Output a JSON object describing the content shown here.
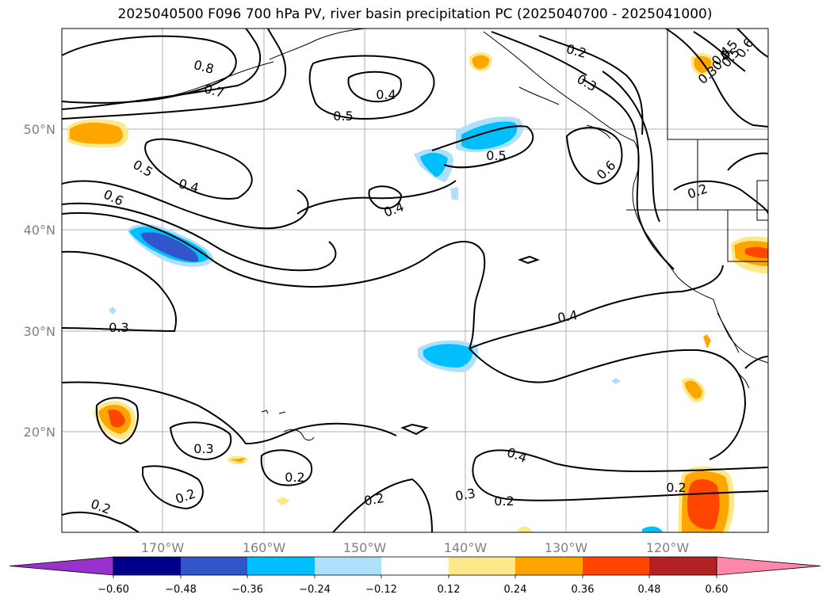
{
  "title": "2025040500 F096 700 hPa PV, river basin precipitation PC (2025040700 - 2025041000)",
  "lat_labels": [
    "50°N",
    "40°N",
    "30°N",
    "20°N"
  ],
  "lon_labels": [
    "170°W",
    "160°W",
    "150°W",
    "140°W",
    "130°W",
    "120°W"
  ],
  "contour_labels": [
    "0.8",
    "0.7",
    "0.5",
    "0.4",
    "0.5",
    "0.2",
    "0.3",
    "0.4",
    "0.5",
    "0.4",
    "0.6",
    "0.6",
    "0.5",
    "0.4",
    "0.3",
    "0.2",
    "0.3",
    "0.2",
    "0.2",
    "0.2",
    "0.3",
    "0.4",
    "0.2",
    "0.2",
    "0.4",
    "0.2",
    "0.6",
    "0.5",
    "0.4",
    "0.3"
  ],
  "colorbar": {
    "ticks": [
      "−0.60",
      "−0.48",
      "−0.36",
      "−0.24",
      "−0.12",
      "0.12",
      "0.24",
      "0.36",
      "0.48",
      "0.60"
    ],
    "colors": {
      "under": "#9932cc",
      "lt_neg060": "#00008b",
      "neg048": "#3355cc",
      "neg036": "#00bfff",
      "neg024": "#aee0fb",
      "zero": "#ffffff",
      "pos012": "#fde98a",
      "pos024": "#ffa500",
      "pos036": "#ff4500",
      "pos048": "#b22222",
      "over": "#ff88aa"
    }
  }
}
